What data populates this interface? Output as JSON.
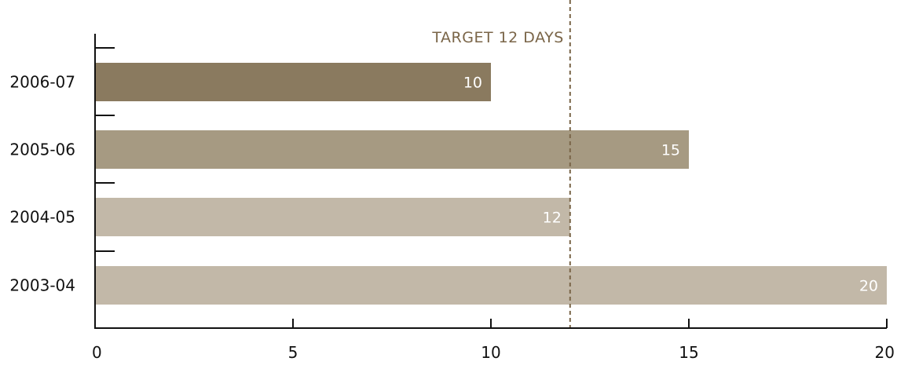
{
  "chart_data": {
    "type": "bar",
    "orientation": "horizontal",
    "categories": [
      "2006-07",
      "2005-06",
      "2004-05",
      "2003-04"
    ],
    "values": [
      10,
      15,
      12,
      20
    ],
    "bar_colors": [
      "#8a7a5f",
      "#a69a82",
      "#c2b8a8",
      "#c2b8a8"
    ],
    "xlim": [
      0,
      20
    ],
    "x_ticks": [
      0,
      5,
      10,
      15,
      20
    ],
    "data_labels": [
      "10",
      "15",
      "12",
      "20"
    ],
    "grid": false,
    "legend": "none",
    "reference_line": {
      "value": 12,
      "label": "TARGET 12 DAYS",
      "style": "dashed",
      "color": "#7a6548"
    },
    "title": "",
    "xlabel": "",
    "ylabel": ""
  }
}
